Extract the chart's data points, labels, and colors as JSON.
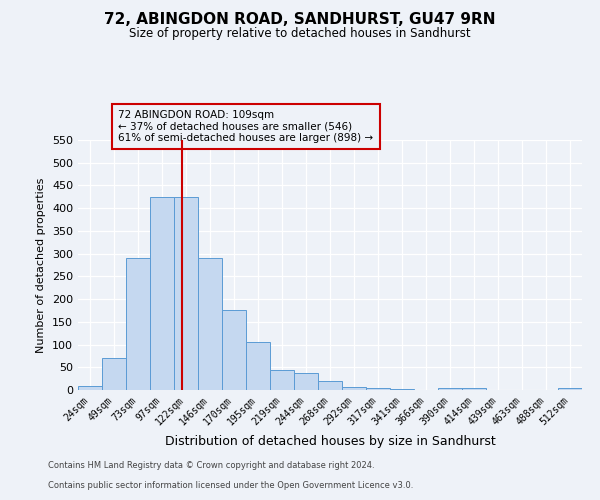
{
  "title": "72, ABINGDON ROAD, SANDHURST, GU47 9RN",
  "subtitle": "Size of property relative to detached houses in Sandhurst",
  "xlabel": "Distribution of detached houses by size in Sandhurst",
  "ylabel": "Number of detached properties",
  "bar_labels": [
    "24sqm",
    "49sqm",
    "73sqm",
    "97sqm",
    "122sqm",
    "146sqm",
    "170sqm",
    "195sqm",
    "219sqm",
    "244sqm",
    "268sqm",
    "292sqm",
    "317sqm",
    "341sqm",
    "366sqm",
    "390sqm",
    "414sqm",
    "439sqm",
    "463sqm",
    "488sqm",
    "512sqm"
  ],
  "bar_values": [
    8,
    70,
    290,
    425,
    425,
    290,
    175,
    105,
    43,
    38,
    19,
    7,
    4,
    2,
    0,
    4,
    4,
    0,
    0,
    0,
    4
  ],
  "bar_color": "#c5d8f0",
  "bar_edge_color": "#5b9bd5",
  "vline_x": 3.85,
  "vline_color": "#cc0000",
  "ylim": [
    0,
    550
  ],
  "yticks": [
    0,
    50,
    100,
    150,
    200,
    250,
    300,
    350,
    400,
    450,
    500,
    550
  ],
  "annotation_title": "72 ABINGDON ROAD: 109sqm",
  "annotation_line1": "← 37% of detached houses are smaller (546)",
  "annotation_line2": "61% of semi-detached houses are larger (898) →",
  "annotation_box_color": "#cc0000",
  "bg_color": "#eef2f8",
  "footer1": "Contains HM Land Registry data © Crown copyright and database right 2024.",
  "footer2": "Contains public sector information licensed under the Open Government Licence v3.0."
}
